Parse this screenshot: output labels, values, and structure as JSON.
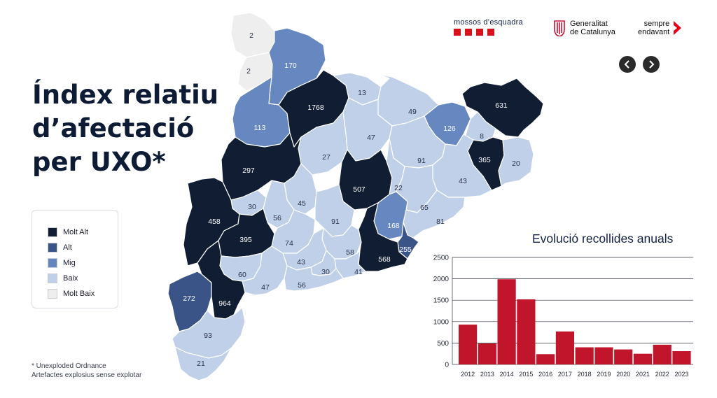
{
  "title": {
    "line1": "Índex relatiu",
    "line2": "d’afectació",
    "line3": "per UXO*"
  },
  "logos": {
    "mossos": "mossos d’esquadra",
    "generalitat_line1": "Generalitat",
    "generalitat_line2": "de Catalunya",
    "sempre_line1": "sempre",
    "sempre_line2": "endavant"
  },
  "nav": {
    "prev_icon": "chevron-left-icon",
    "next_icon": "chevron-right-icon"
  },
  "legend": [
    {
      "label": "Molt Alt",
      "color": "#111d33"
    },
    {
      "label": "Alt",
      "color": "#3b5488"
    },
    {
      "label": "Mig",
      "color": "#6787c0"
    },
    {
      "label": "Baix",
      "color": "#c0d0e8"
    },
    {
      "label": "Molt Baix",
      "color": "#eeeeee"
    }
  ],
  "footnote": {
    "line1": "* Unexploded Ordnance",
    "line2": "Artefactes explosius sense explotar"
  },
  "map_regions": [
    {
      "value": "2",
      "level": "Molt Baix"
    },
    {
      "value": "2",
      "level": "Molt Baix"
    },
    {
      "value": "170",
      "level": "Mig"
    },
    {
      "value": "113",
      "level": "Mig"
    },
    {
      "value": "1768",
      "level": "Molt Alt"
    },
    {
      "value": "13",
      "level": "Baix"
    },
    {
      "value": "49",
      "level": "Baix"
    },
    {
      "value": "631",
      "level": "Molt Alt"
    },
    {
      "value": "126",
      "level": "Mig"
    },
    {
      "value": "8",
      "level": "Baix"
    },
    {
      "value": "47",
      "level": "Baix"
    },
    {
      "value": "365",
      "level": "Molt Alt"
    },
    {
      "value": "20",
      "level": "Baix"
    },
    {
      "value": "91",
      "level": "Baix"
    },
    {
      "value": "27",
      "level": "Baix"
    },
    {
      "value": "297",
      "level": "Molt Alt"
    },
    {
      "value": "507",
      "level": "Molt Alt"
    },
    {
      "value": "22",
      "level": "Baix"
    },
    {
      "value": "43",
      "level": "Baix"
    },
    {
      "value": "30",
      "level": "Baix"
    },
    {
      "value": "45",
      "level": "Baix"
    },
    {
      "value": "56",
      "level": "Baix"
    },
    {
      "value": "458",
      "level": "Molt Alt"
    },
    {
      "value": "65",
      "level": "Baix"
    },
    {
      "value": "168",
      "level": "Mig"
    },
    {
      "value": "81",
      "level": "Baix"
    },
    {
      "value": "91",
      "level": "Baix"
    },
    {
      "value": "395",
      "level": "Molt Alt"
    },
    {
      "value": "74",
      "level": "Baix"
    },
    {
      "value": "255",
      "level": "Alt"
    },
    {
      "value": "58",
      "level": "Baix"
    },
    {
      "value": "43",
      "level": "Baix"
    },
    {
      "value": "568",
      "level": "Molt Alt"
    },
    {
      "value": "60",
      "level": "Baix"
    },
    {
      "value": "30",
      "level": "Baix"
    },
    {
      "value": "41",
      "level": "Baix"
    },
    {
      "value": "47",
      "level": "Baix"
    },
    {
      "value": "56",
      "level": "Baix"
    },
    {
      "value": "272",
      "level": "Alt"
    },
    {
      "value": "964",
      "level": "Molt Alt"
    },
    {
      "value": "93",
      "level": "Baix"
    },
    {
      "value": "21",
      "level": "Baix"
    }
  ],
  "chart_data": {
    "type": "bar",
    "title": "Evolució recollides anuals",
    "categories": [
      "2012",
      "2013",
      "2014",
      "2015",
      "2016",
      "2017",
      "2018",
      "2019",
      "2020",
      "2021",
      "2022",
      "2023"
    ],
    "values": [
      930,
      490,
      1990,
      1520,
      240,
      770,
      400,
      400,
      350,
      250,
      460,
      310
    ],
    "ylim": [
      0,
      2500
    ],
    "yticks": [
      "0",
      "500",
      "1000",
      "1500",
      "2000",
      "2500"
    ],
    "grid": true,
    "bar_color": "#c0152a"
  }
}
